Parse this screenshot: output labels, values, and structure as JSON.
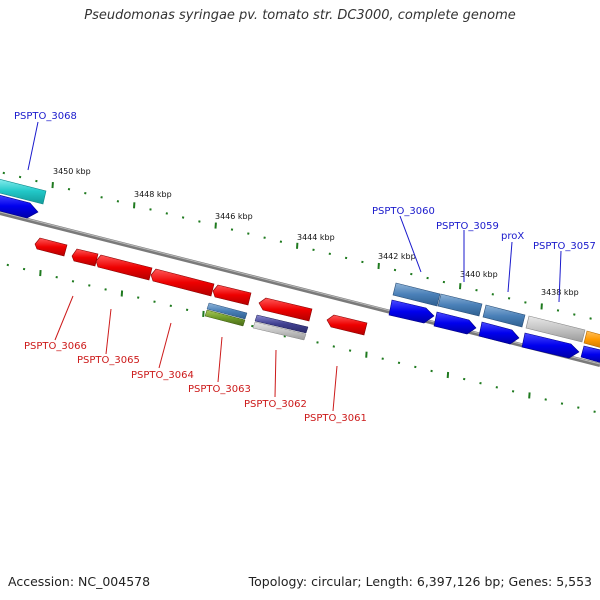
{
  "title": "Pseudomonas syringae pv. tomato str. DC3000, complete genome",
  "footer": {
    "accession": "Accession: NC_004578",
    "summary": "Topology: circular; Length: 6,397,126 bp; Genes: 5,553"
  },
  "colors": {
    "forward_label": "#1a1acc",
    "reverse_label": "#cc1a1a",
    "tick": "#1f7a1f",
    "backbone": "#888888"
  },
  "kbp_labels": [
    "3450 kbp",
    "3448 kbp",
    "3446 kbp",
    "3444 kbp",
    "3442 kbp",
    "3440 kbp",
    "3438 kbp"
  ],
  "forward_genes": [
    "PSPTO_3068",
    "PSPTO_3060",
    "PSPTO_3059",
    "proX",
    "PSPTO_3057"
  ],
  "reverse_genes": [
    "PSPTO_3066",
    "PSPTO_3065",
    "PSPTO_3064",
    "PSPTO_3063",
    "PSPTO_3062",
    "PSPTO_3061"
  ]
}
